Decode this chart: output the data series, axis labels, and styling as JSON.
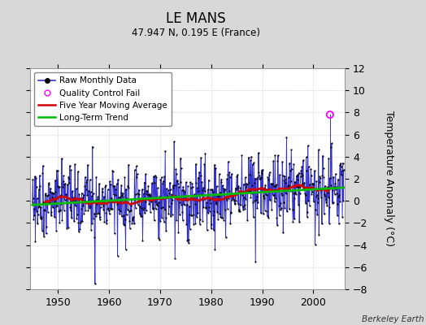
{
  "title": "LE MANS",
  "subtitle": "47.947 N, 0.195 E (France)",
  "ylabel": "Temperature Anomaly (°C)",
  "credit": "Berkeley Earth",
  "year_start": 1945,
  "year_end": 2005,
  "ylim": [
    -8,
    12
  ],
  "yticks": [
    -8,
    -6,
    -4,
    -2,
    0,
    2,
    4,
    6,
    8,
    10,
    12
  ],
  "xticks": [
    1950,
    1960,
    1970,
    1980,
    1990,
    2000
  ],
  "fig_bg_color": "#d8d8d8",
  "plot_bg_color": "#ffffff",
  "raw_line_color": "#3333cc",
  "raw_dot_color": "#000000",
  "ma_color": "#cc0000",
  "trend_color": "#00bb00",
  "qc_color": "#ff00ff",
  "grid_color": "#cccccc",
  "frame_color": "#999999"
}
